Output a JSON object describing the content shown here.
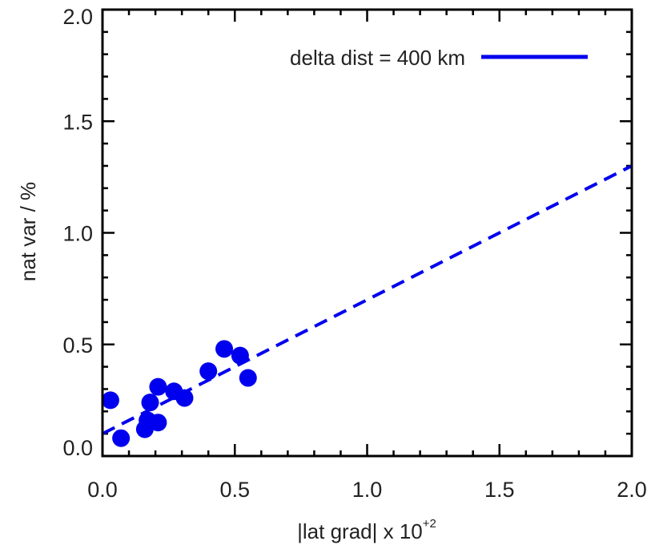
{
  "chart_data": {
    "type": "scatter",
    "xlabel": {
      "before": "|lat grad| x 10",
      "exponent": "+2"
    },
    "ylabel": "nat var / %",
    "xlim": [
      0.0,
      2.0
    ],
    "ylim": [
      0.0,
      2.0
    ],
    "xticks": [
      0.0,
      0.5,
      1.0,
      1.5,
      2.0
    ],
    "yticks": [
      0.0,
      0.5,
      1.0,
      1.5,
      2.0
    ],
    "xtick_labels": [
      "0.0",
      "0.5",
      "1.0",
      "1.5",
      "2.0"
    ],
    "ytick_labels": [
      "0.0",
      "0.5",
      "1.0",
      "1.5",
      "2.0"
    ],
    "color": "#0000ee",
    "points": [
      {
        "x": 0.03,
        "y": 0.25
      },
      {
        "x": 0.07,
        "y": 0.08
      },
      {
        "x": 0.16,
        "y": 0.12
      },
      {
        "x": 0.17,
        "y": 0.16
      },
      {
        "x": 0.18,
        "y": 0.24
      },
      {
        "x": 0.21,
        "y": 0.15
      },
      {
        "x": 0.21,
        "y": 0.31
      },
      {
        "x": 0.27,
        "y": 0.29
      },
      {
        "x": 0.31,
        "y": 0.26
      },
      {
        "x": 0.4,
        "y": 0.38
      },
      {
        "x": 0.46,
        "y": 0.48
      },
      {
        "x": 0.52,
        "y": 0.45
      },
      {
        "x": 0.55,
        "y": 0.35
      }
    ],
    "fit_line": {
      "style": "dashed",
      "x": [
        0.0,
        2.0
      ],
      "y": [
        0.1,
        1.3
      ]
    },
    "legend": {
      "label": "delta dist = 400 km",
      "placement": "top-right",
      "line_style": "solid"
    }
  }
}
